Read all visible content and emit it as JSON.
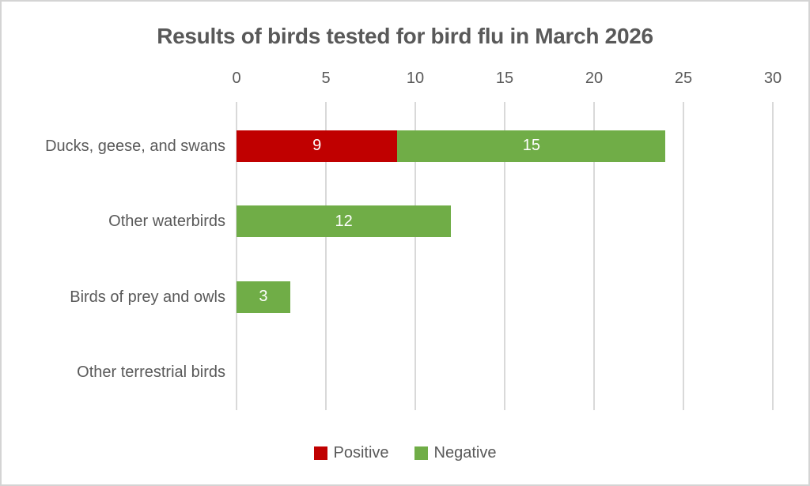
{
  "title": "Results of birds tested for bird flu in March 2026",
  "colors": {
    "positive": "#C00000",
    "negative": "#70AD47",
    "gridline": "#D9D9D9",
    "text": "#595959",
    "value_label": "#FFFFFF",
    "frame_border": "#D4D4D4",
    "background": "#FFFFFF"
  },
  "chart_data": {
    "type": "bar",
    "orientation": "horizontal",
    "stacked": true,
    "title": "Results of birds tested for bird flu in March 2026",
    "categories": [
      "Ducks, geese, and swans",
      "Other waterbirds",
      "Birds of prey and owls",
      "Other terrestrial birds"
    ],
    "series": [
      {
        "name": "Positive",
        "color": "#C00000",
        "values": [
          9,
          0,
          0,
          0
        ]
      },
      {
        "name": "Negative",
        "color": "#70AD47",
        "values": [
          15,
          12,
          3,
          0
        ]
      }
    ],
    "x_ticks": [
      0,
      5,
      10,
      15,
      20,
      25,
      30
    ],
    "xlim": [
      0,
      30
    ],
    "xlabel": "",
    "ylabel": "",
    "grid": true,
    "axis_position": "top",
    "legend_position": "bottom",
    "data_labels": [
      {
        "category": "Ducks, geese, and swans",
        "labels": [
          "9",
          "15"
        ]
      },
      {
        "category": "Other waterbirds",
        "labels": [
          "12"
        ]
      },
      {
        "category": "Birds of prey and owls",
        "labels": [
          "3"
        ]
      },
      {
        "category": "Other terrestrial birds",
        "labels": []
      }
    ]
  }
}
